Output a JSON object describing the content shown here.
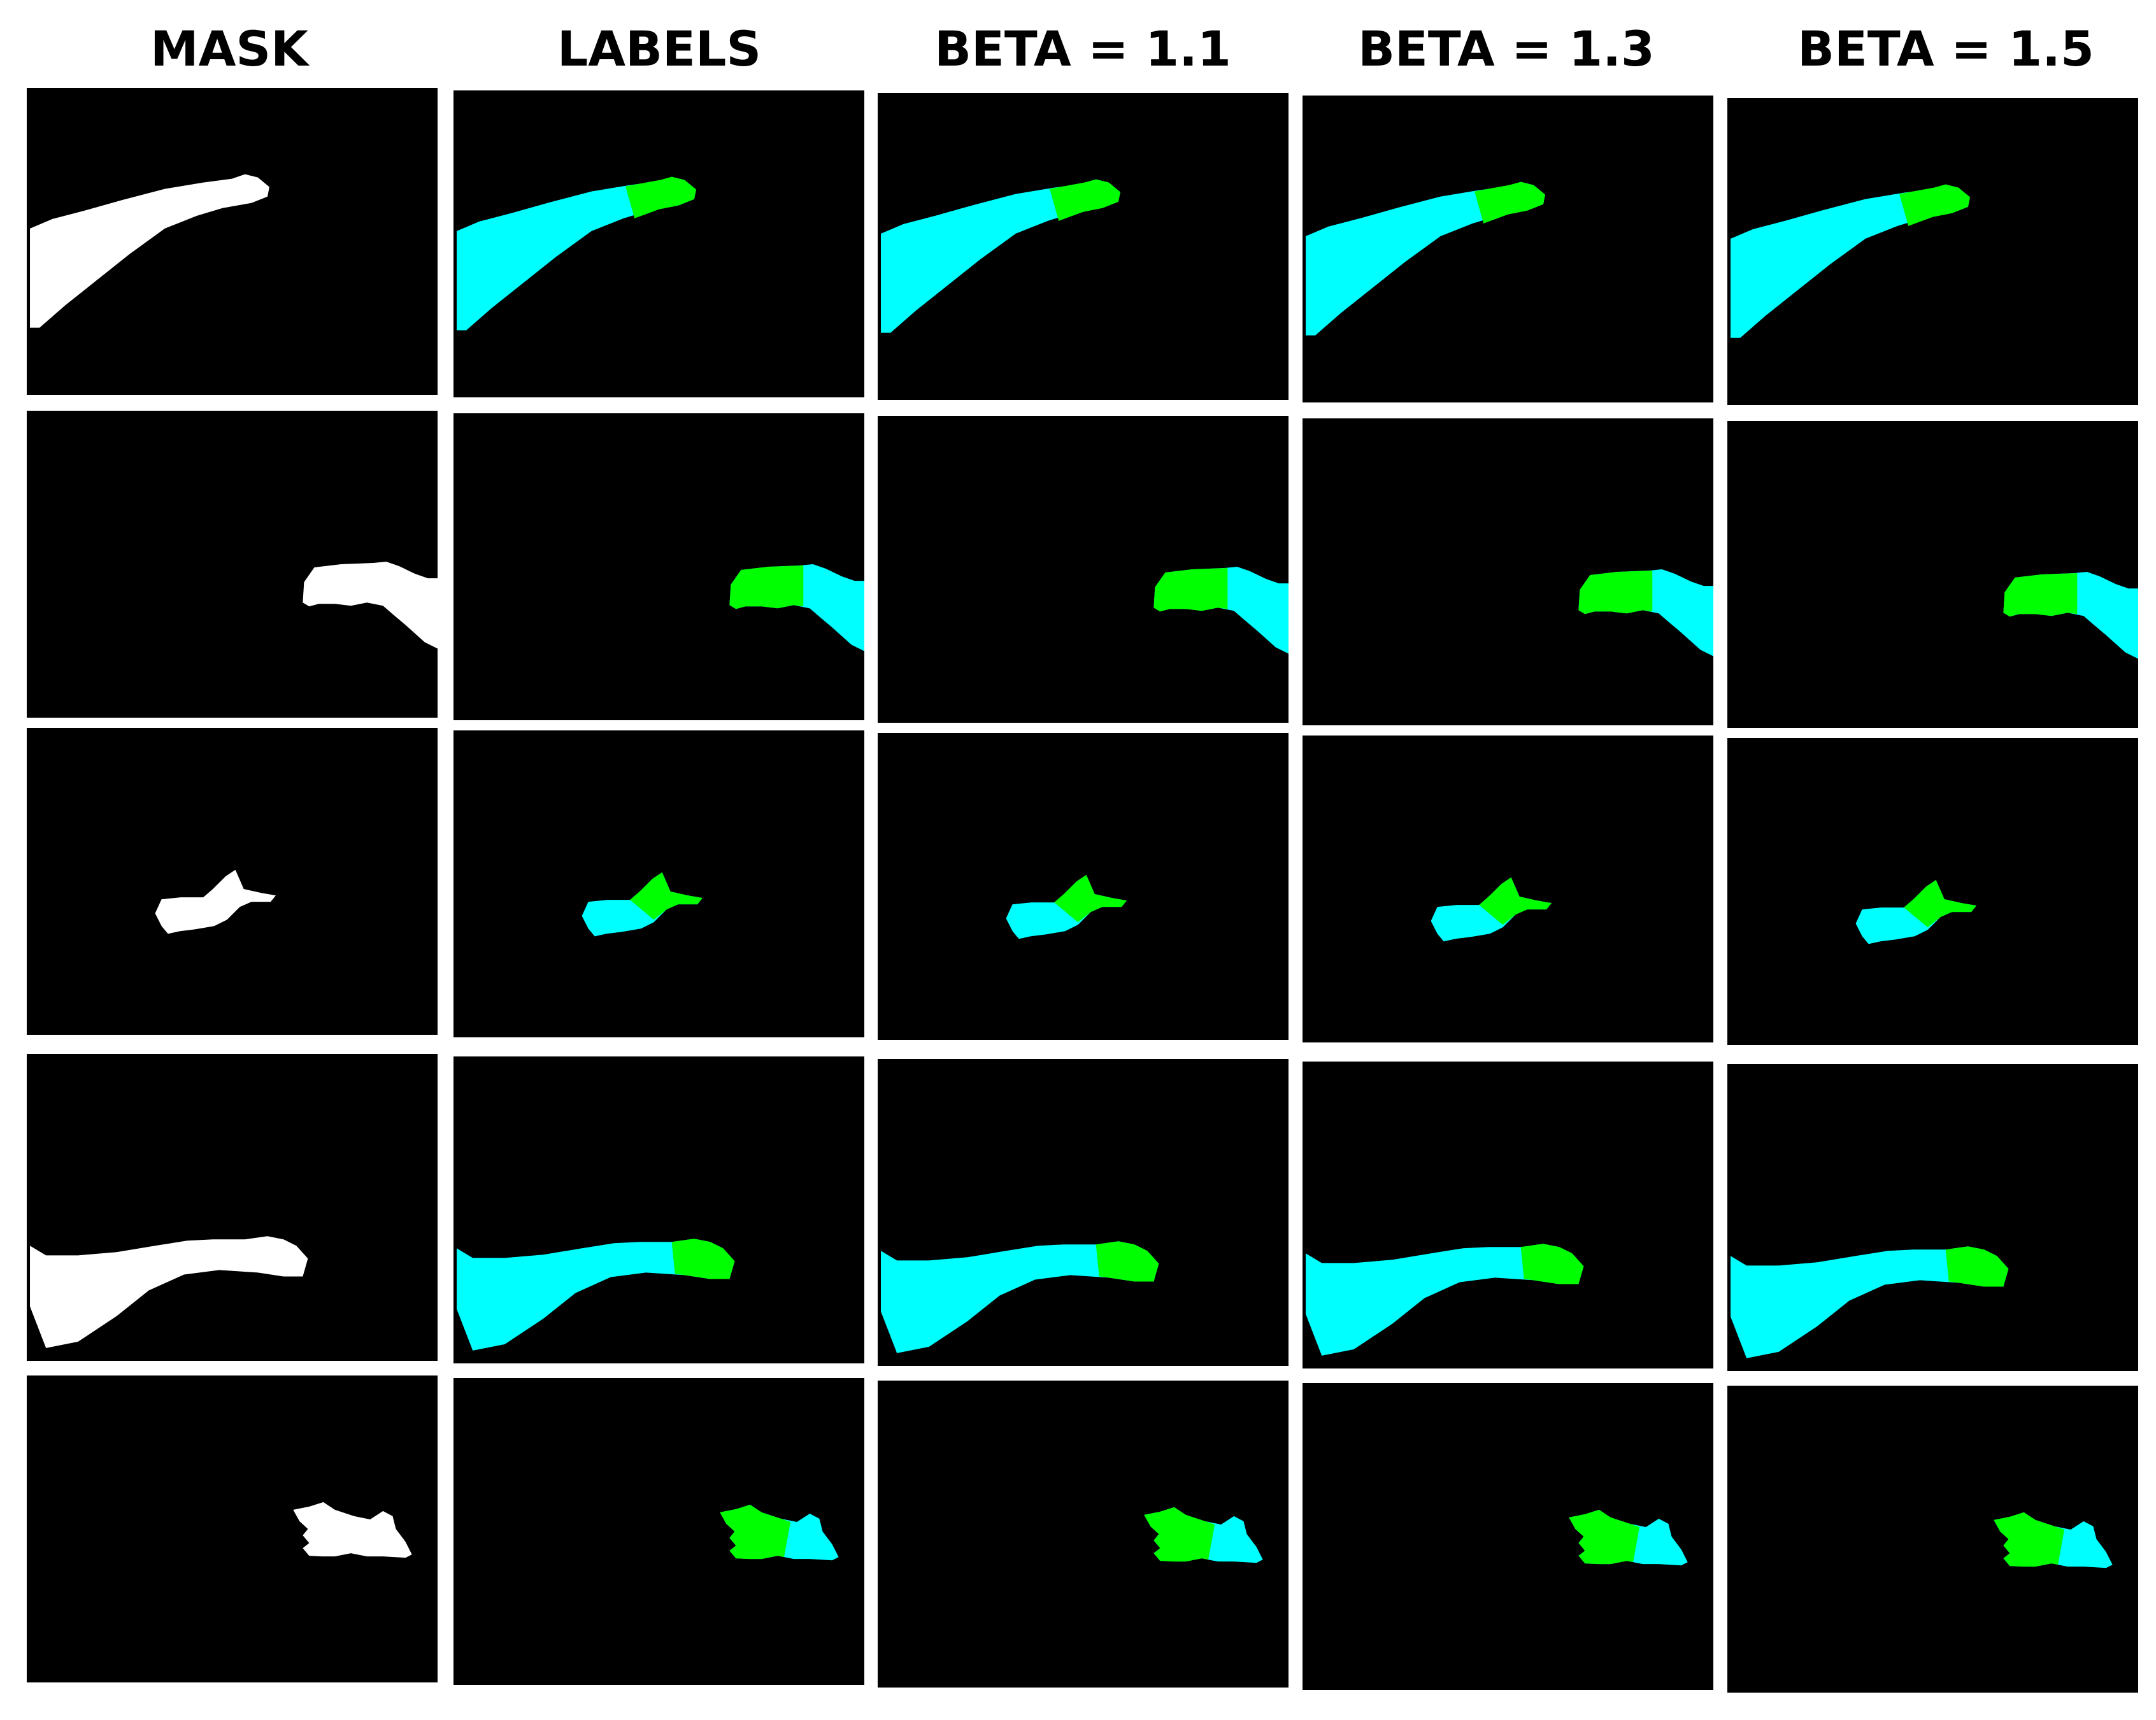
{
  "headers": {
    "col1": "MASK",
    "col2": "LABELS",
    "col3": "BETA = 1.1",
    "col4": "BETA = 1.3",
    "col5": "BETA = 1.5"
  },
  "colors": {
    "background": "#000000",
    "mask": "#ffffff",
    "segment_a": "#00ffff",
    "segment_b": "#00ff00",
    "page": "#ffffff"
  },
  "grid": {
    "rows": 5,
    "columns": 5
  }
}
